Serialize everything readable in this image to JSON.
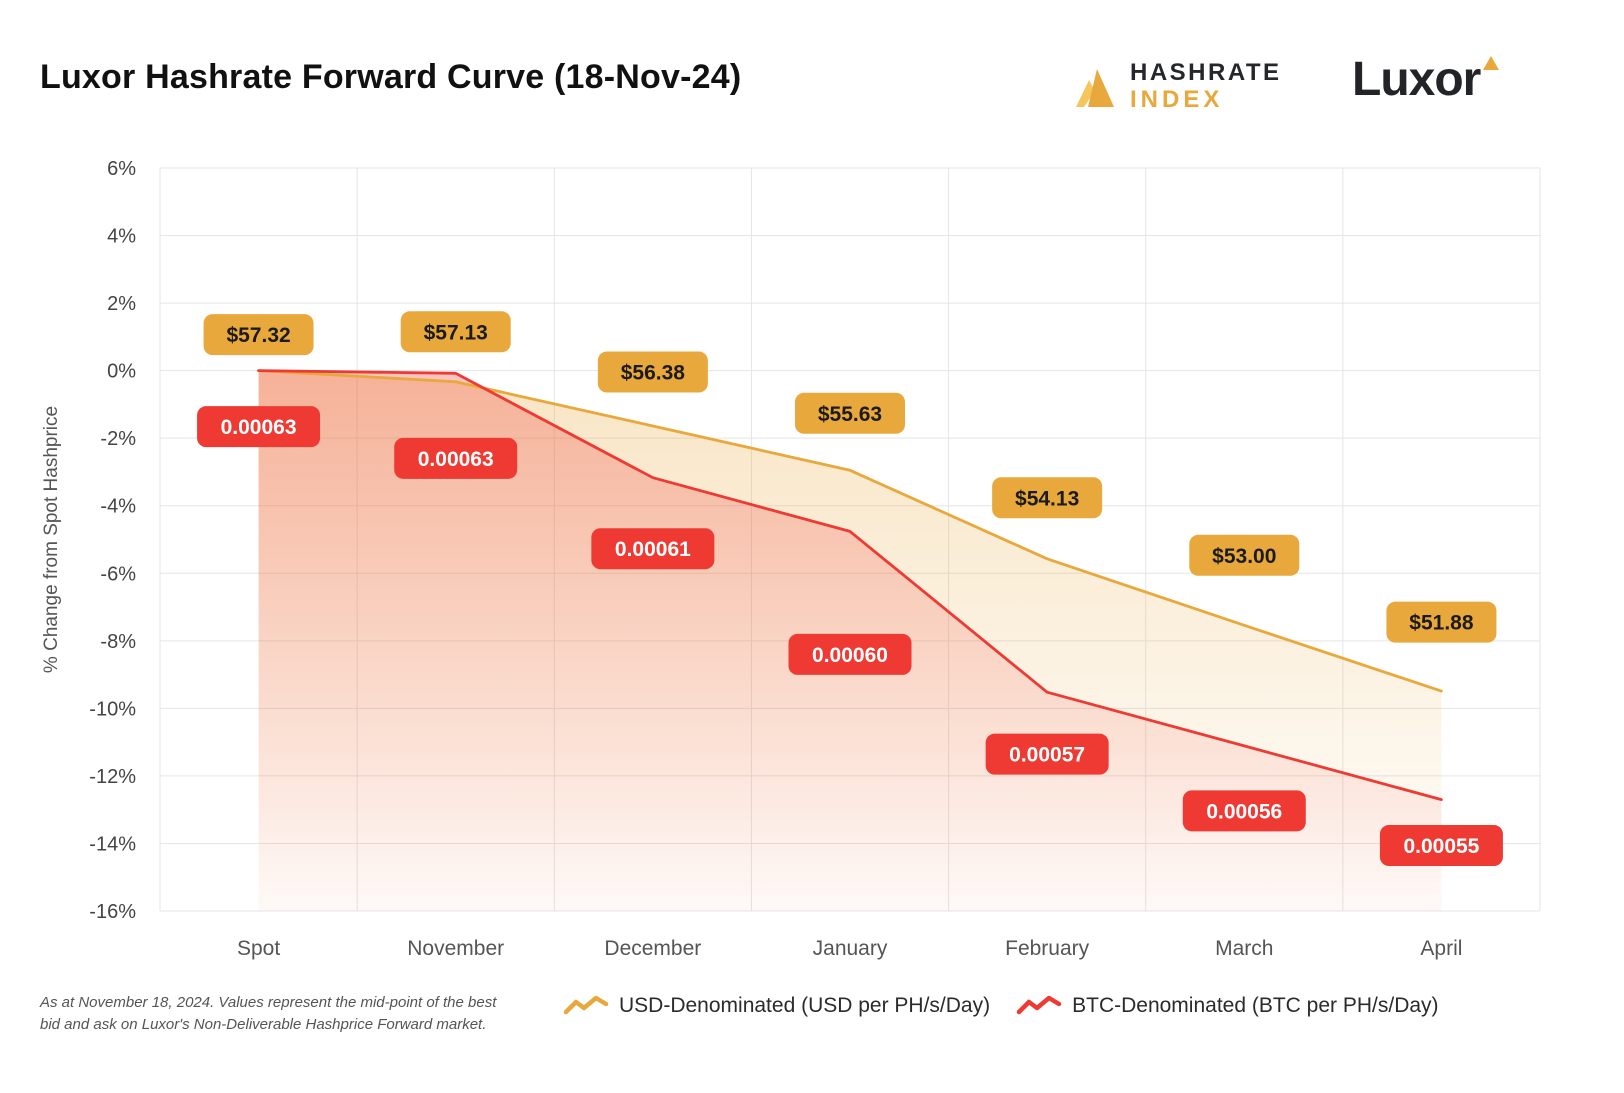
{
  "colors": {
    "gold": "#E9A83B",
    "gold_light": "#F5C65D",
    "red": "#EE3A33",
    "title_text": "#111111"
  },
  "header": {
    "title": "Luxor Hashrate Forward Curve (18-Nov-24)",
    "hashrate_index": {
      "line1": "HASHRATE",
      "line2": "INDEX"
    },
    "luxor": "Luxor"
  },
  "chart_data": {
    "type": "line",
    "categories": [
      "Spot",
      "November",
      "December",
      "January",
      "February",
      "March",
      "April"
    ],
    "ylabel": "% Change from Spot Hashprice",
    "ylim": [
      -16,
      6
    ],
    "ytick_step": 2,
    "ytick_labels": [
      "6%",
      "4%",
      "2%",
      "0%",
      "-2%",
      "-4%",
      "-6%",
      "-8%",
      "-10%",
      "-12%",
      "-14%",
      "-16%"
    ],
    "grid": true,
    "legend_position": "bottom",
    "series": [
      {
        "name": "USD-Denominated (USD per PH/s/Day)",
        "color": "#E9A83B",
        "values": [
          57.32,
          57.13,
          56.38,
          55.63,
          54.13,
          53.0,
          51.88
        ],
        "pct_change": [
          0,
          -0.33,
          -1.64,
          -2.95,
          -5.57,
          -7.54,
          -9.49
        ],
        "labels": [
          "$57.32",
          "$57.13",
          "$56.38",
          "$55.63",
          "$54.13",
          "$53.00",
          "$51.88"
        ],
        "label_text_color": "#1b1b1b"
      },
      {
        "name": "BTC-Denominated (BTC per PH/s/Day)",
        "color": "#EE3A33",
        "values": [
          0.00063,
          0.00063,
          0.00061,
          0.0006,
          0.00057,
          0.00056,
          0.00055
        ],
        "pct_change": [
          0,
          -0.08,
          -3.17,
          -4.76,
          -9.52,
          -11.11,
          -12.7
        ],
        "labels": [
          "0.00063",
          "0.00063",
          "0.00061",
          "0.00060",
          "0.00057",
          "0.00056",
          "0.00055"
        ],
        "label_text_color": "#ffffff"
      }
    ]
  },
  "footer": {
    "note": "As at November 18, 2024. Values represent the mid-point of the best bid and ask on Luxor's Non-Deliverable Hashprice Forward market.",
    "legend": [
      {
        "label": "USD-Denominated (USD per PH/s/Day)"
      },
      {
        "label": "BTC-Denominated (BTC per PH/s/Day)"
      }
    ]
  }
}
